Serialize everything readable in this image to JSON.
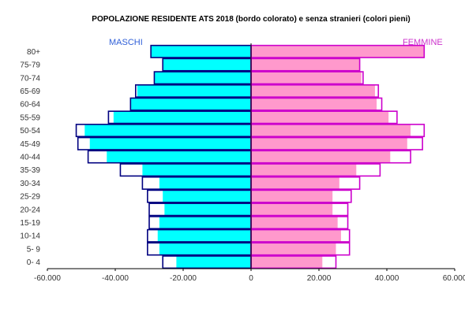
{
  "chart_data": {
    "type": "bar",
    "orientation": "horizontal",
    "title": "POPOLAZIONE RESIDENTE ATS 2018 (bordo colorato) e senza stranieri (colori pieni)",
    "legend": {
      "left": "MASCHI",
      "right": "FEMMINE"
    },
    "categories": [
      "80+",
      "75-79",
      "70-74",
      "65-69",
      "60-64",
      "55-59",
      "50-54",
      "45-49",
      "40-44",
      "35-39",
      "30-34",
      "25-29",
      "20-24",
      "15-19",
      "10-14",
      "5- 9",
      "0- 4"
    ],
    "x_tick_labels": [
      "-60.000",
      "-40.000",
      "-20.000",
      "0",
      "20.000",
      "40.000",
      "60.000"
    ],
    "x_ticks": [
      -60000,
      -40000,
      -20000,
      0,
      20000,
      40000,
      60000
    ],
    "xlim": [
      -60000,
      60000
    ],
    "series": [
      {
        "name": "MASCHI",
        "values_total": [
          -29500,
          -26000,
          -28500,
          -34000,
          -35500,
          -42000,
          -51500,
          -51000,
          -48000,
          -38500,
          -32000,
          -30500,
          -30000,
          -30000,
          -30500,
          -30500,
          -26000
        ],
        "values_fill": [
          -29500,
          -26000,
          -28500,
          -33500,
          -35500,
          -40500,
          -49000,
          -47500,
          -42500,
          -32000,
          -27000,
          -26000,
          -25500,
          -27000,
          -27500,
          -27000,
          -22000
        ]
      },
      {
        "name": "FEMMINE",
        "values_total": [
          51000,
          32000,
          33000,
          37500,
          38500,
          43000,
          51000,
          50500,
          47000,
          38000,
          32000,
          29500,
          28500,
          28500,
          29000,
          29000,
          25000
        ],
        "values_fill": [
          51000,
          32000,
          32500,
          36500,
          37000,
          40500,
          47000,
          46000,
          41000,
          31000,
          26000,
          24000,
          24000,
          25500,
          26500,
          25000,
          21000
        ]
      }
    ],
    "colors": {
      "male_fill": "#00ffff",
      "female_fill": "#ff99cc",
      "outline": "#000080",
      "female_outline": "#cc00cc"
    },
    "grid": false
  }
}
